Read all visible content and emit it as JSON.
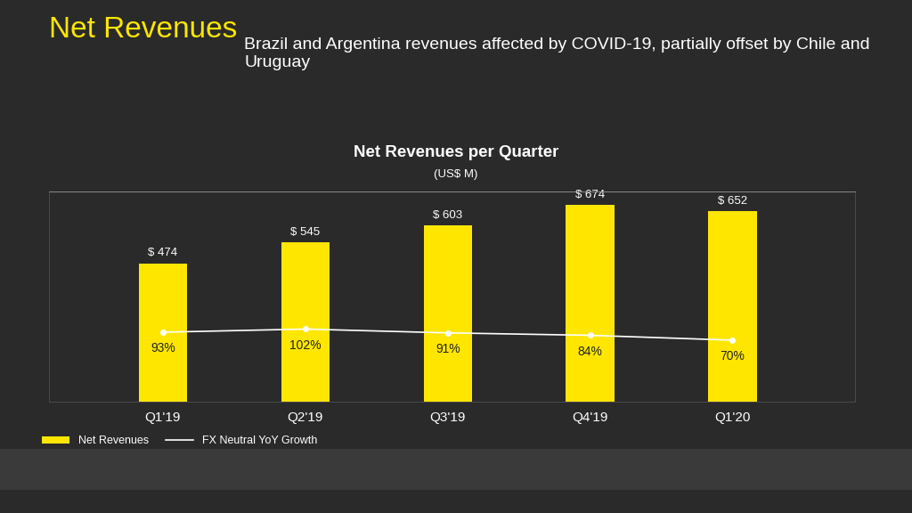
{
  "header": {
    "title": "Net Revenues",
    "subtitle": "Brazil and Argentina revenues affected by COVID-19, partially offset by Chile and Uruguay"
  },
  "chart_data": {
    "type": "bar",
    "title": "Net Revenues per Quarter",
    "subtitle": "(US$ M)",
    "categories": [
      "Q1'19",
      "Q2'19",
      "Q3'19",
      "Q4'19",
      "Q1'20"
    ],
    "series": [
      {
        "name": "Net Revenues",
        "type": "bar",
        "color": "#ffe600",
        "values": [
          474,
          545,
          603,
          674,
          652
        ],
        "value_labels": [
          "$ 474",
          "$ 545",
          "$ 603",
          "$ 674",
          "$ 652"
        ]
      },
      {
        "name": "FX Neutral YoY Growth",
        "type": "line",
        "axis": "y2",
        "color": "#ffffff",
        "marker": "o",
        "line_style": "solid",
        "values": [
          93,
          102,
          91,
          84,
          70
        ],
        "value_labels": [
          "93%",
          "102%",
          "91%",
          "84%",
          "70%"
        ]
      }
    ],
    "ylim": [
      0,
      720
    ],
    "y2lim": [
      -107,
      498
    ],
    "data_labels": true,
    "tick_labels": "x",
    "grid": false,
    "legend": "lower left"
  }
}
